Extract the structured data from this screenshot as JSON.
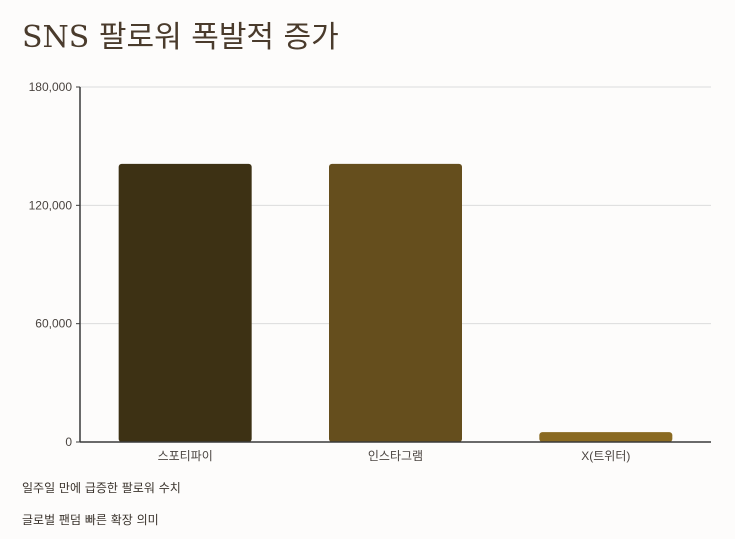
{
  "title": "SNS 팔로워 폭발적 증가",
  "notes": [
    "일주일 만에 급증한 팔로워 수치",
    "글로벌 팬덤 빠른 확장 의미"
  ],
  "colors": {
    "background": "#fdfcfb",
    "axis": "#3a3a3a",
    "grid": "#dcdcdc",
    "bars": [
      "#3d3114",
      "#654e1d",
      "#8a6a22"
    ]
  },
  "chart_data": {
    "type": "bar",
    "title": "SNS 팔로워 폭발적 증가",
    "categories": [
      "스포티파이",
      "인스타그램",
      "X(트위터)"
    ],
    "values": [
      141000,
      141000,
      5000
    ],
    "ylim": [
      0,
      180000
    ],
    "yticks": [
      0,
      60000,
      120000,
      180000
    ],
    "ytick_labels": [
      "0",
      "60,000",
      "120,000",
      "180,000"
    ],
    "xlabel": "",
    "ylabel": "",
    "grid": true,
    "legend": "none"
  }
}
